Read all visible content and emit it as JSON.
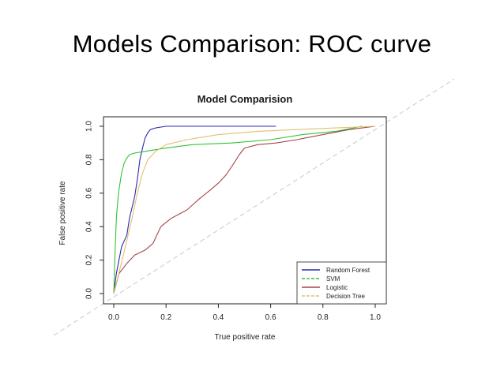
{
  "slide": {
    "title": "Models Comparison: ROC curve"
  },
  "chart_data": {
    "type": "line",
    "title": "Model Comparision",
    "xlabel": "True positive rate",
    "ylabel": "False positive rate",
    "xlim": [
      0,
      1
    ],
    "ylim": [
      0,
      1
    ],
    "x_ticks": [
      "0.0",
      "0.2",
      "0.4",
      "0.6",
      "0.8",
      "1.0"
    ],
    "y_ticks": [
      "0.0",
      "0.2",
      "0.4",
      "0.6",
      "0.8",
      "1.0"
    ],
    "legend_position": "bottom-right",
    "grid": false,
    "diagonal_reference": true,
    "series": [
      {
        "name": "Random Forest",
        "color": "#2b2bb0",
        "dash": "solid",
        "points": [
          [
            0,
            0
          ],
          [
            0.01,
            0.12
          ],
          [
            0.02,
            0.2
          ],
          [
            0.03,
            0.28
          ],
          [
            0.05,
            0.35
          ],
          [
            0.06,
            0.45
          ],
          [
            0.08,
            0.58
          ],
          [
            0.09,
            0.68
          ],
          [
            0.1,
            0.8
          ],
          [
            0.11,
            0.87
          ],
          [
            0.12,
            0.93
          ],
          [
            0.13,
            0.96
          ],
          [
            0.14,
            0.98
          ],
          [
            0.16,
            0.99
          ],
          [
            0.2,
            1.0
          ],
          [
            0.62,
            1.0
          ]
        ]
      },
      {
        "name": "SVM",
        "color": "#33c233",
        "dash": "solid",
        "points": [
          [
            0,
            0
          ],
          [
            0.005,
            0.25
          ],
          [
            0.01,
            0.45
          ],
          [
            0.015,
            0.55
          ],
          [
            0.02,
            0.62
          ],
          [
            0.03,
            0.72
          ],
          [
            0.04,
            0.78
          ],
          [
            0.05,
            0.81
          ],
          [
            0.06,
            0.83
          ],
          [
            0.08,
            0.84
          ],
          [
            0.12,
            0.85
          ],
          [
            0.2,
            0.87
          ],
          [
            0.3,
            0.89
          ],
          [
            0.45,
            0.9
          ],
          [
            0.6,
            0.92
          ],
          [
            0.72,
            0.95
          ],
          [
            0.85,
            0.97
          ],
          [
            0.95,
            1.0
          ]
        ]
      },
      {
        "name": "Logistic",
        "color": "#a84545",
        "dash": "solid",
        "points": [
          [
            0,
            0
          ],
          [
            0.02,
            0.12
          ],
          [
            0.05,
            0.18
          ],
          [
            0.08,
            0.23
          ],
          [
            0.12,
            0.26
          ],
          [
            0.15,
            0.3
          ],
          [
            0.18,
            0.4
          ],
          [
            0.22,
            0.45
          ],
          [
            0.28,
            0.5
          ],
          [
            0.33,
            0.57
          ],
          [
            0.37,
            0.62
          ],
          [
            0.4,
            0.66
          ],
          [
            0.43,
            0.71
          ],
          [
            0.46,
            0.78
          ],
          [
            0.48,
            0.83
          ],
          [
            0.5,
            0.87
          ],
          [
            0.55,
            0.89
          ],
          [
            0.62,
            0.9
          ],
          [
            0.7,
            0.92
          ],
          [
            0.8,
            0.95
          ],
          [
            0.9,
            0.98
          ],
          [
            1.0,
            1.0
          ]
        ]
      },
      {
        "name": "Decision Tree",
        "color": "#e0c070",
        "dash": "solid",
        "points": [
          [
            0,
            0
          ],
          [
            0.04,
            0.25
          ],
          [
            0.07,
            0.45
          ],
          [
            0.09,
            0.6
          ],
          [
            0.11,
            0.72
          ],
          [
            0.13,
            0.8
          ],
          [
            0.16,
            0.85
          ],
          [
            0.2,
            0.89
          ],
          [
            0.28,
            0.92
          ],
          [
            0.4,
            0.95
          ],
          [
            0.55,
            0.97
          ],
          [
            0.7,
            0.98
          ],
          [
            0.85,
            0.99
          ],
          [
            1.0,
            1.0
          ]
        ]
      }
    ]
  }
}
